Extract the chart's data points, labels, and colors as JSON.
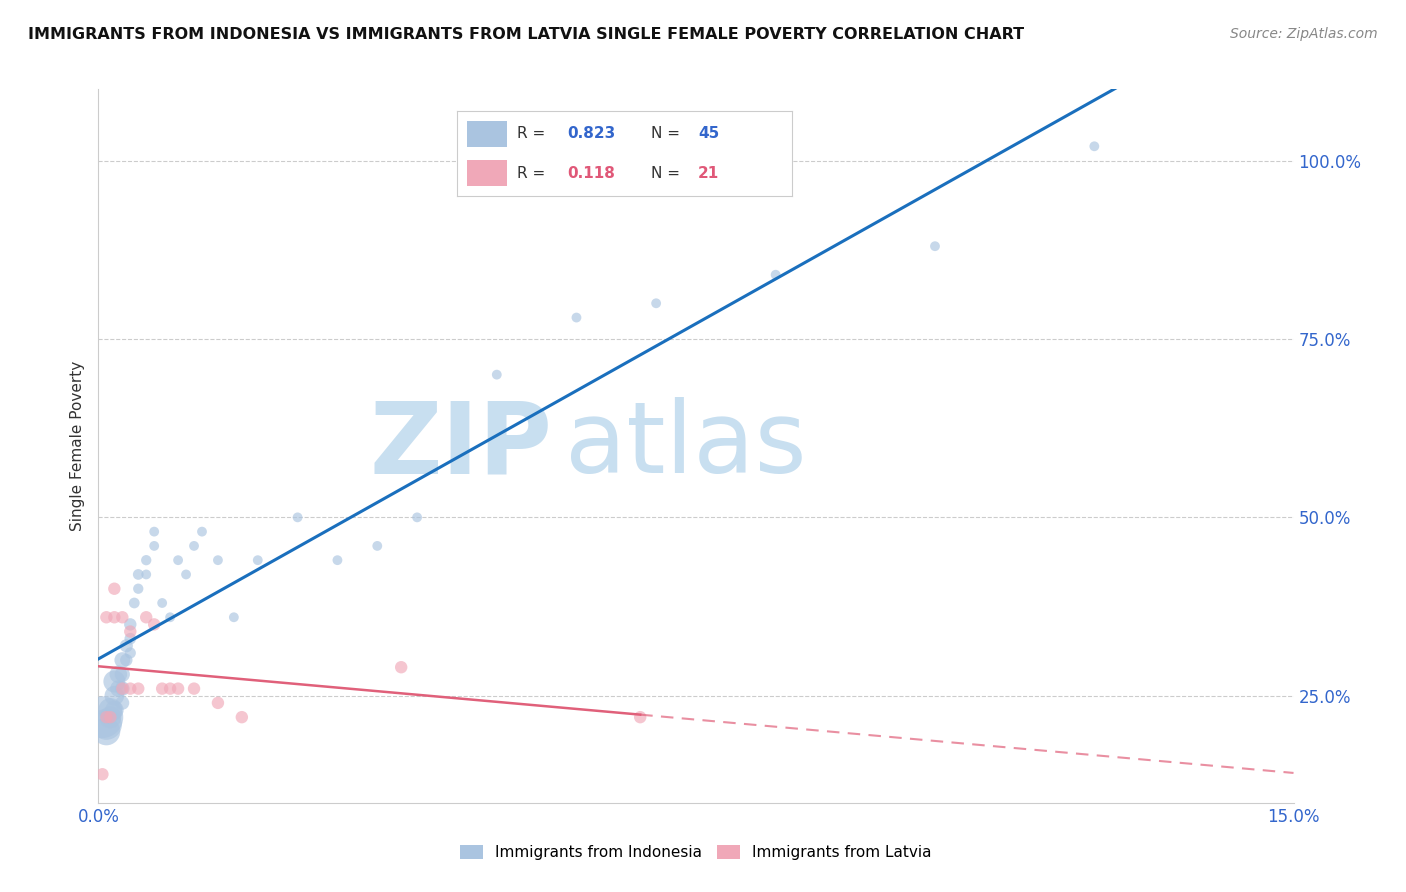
{
  "title": "IMMIGRANTS FROM INDONESIA VS IMMIGRANTS FROM LATVIA SINGLE FEMALE POVERTY CORRELATION CHART",
  "source": "Source: ZipAtlas.com",
  "ylabel": "Single Female Poverty",
  "xlim": [
    0.0,
    0.15
  ],
  "ylim": [
    0.1,
    1.1
  ],
  "right_yticks": [
    0.25,
    0.5,
    0.75,
    1.0
  ],
  "right_yticklabels": [
    "25.0%",
    "50.0%",
    "75.0%",
    "100.0%"
  ],
  "indonesia_color": "#aac4e0",
  "latvia_color": "#f0a8b8",
  "indonesia_line_color": "#1a6fbd",
  "latvia_line_color": "#e0607a",
  "watermark_zip": "ZIP",
  "watermark_atlas": "atlas",
  "watermark_color_zip": "#c8dff0",
  "watermark_color_atlas": "#c8dff0",
  "indonesia_x": [
    0.0005,
    0.001,
    0.001,
    0.0015,
    0.0015,
    0.002,
    0.002,
    0.002,
    0.0025,
    0.0025,
    0.003,
    0.003,
    0.003,
    0.003,
    0.0035,
    0.0035,
    0.004,
    0.004,
    0.004,
    0.0045,
    0.005,
    0.005,
    0.006,
    0.006,
    0.007,
    0.007,
    0.008,
    0.009,
    0.01,
    0.011,
    0.012,
    0.013,
    0.015,
    0.017,
    0.02,
    0.025,
    0.03,
    0.035,
    0.04,
    0.05,
    0.06,
    0.07,
    0.085,
    0.105,
    0.125
  ],
  "indonesia_y": [
    0.22,
    0.21,
    0.2,
    0.23,
    0.22,
    0.27,
    0.25,
    0.23,
    0.28,
    0.26,
    0.3,
    0.28,
    0.26,
    0.24,
    0.32,
    0.3,
    0.35,
    0.33,
    0.31,
    0.38,
    0.42,
    0.4,
    0.44,
    0.42,
    0.48,
    0.46,
    0.38,
    0.36,
    0.44,
    0.42,
    0.46,
    0.48,
    0.44,
    0.36,
    0.44,
    0.5,
    0.44,
    0.46,
    0.5,
    0.7,
    0.78,
    0.8,
    0.84,
    0.88,
    1.02
  ],
  "indonesia_sizes": [
    900,
    500,
    400,
    300,
    250,
    250,
    200,
    180,
    160,
    140,
    130,
    120,
    110,
    100,
    90,
    80,
    80,
    70,
    65,
    60,
    60,
    55,
    55,
    50,
    50,
    50,
    50,
    50,
    50,
    50,
    50,
    50,
    50,
    50,
    50,
    50,
    50,
    50,
    50,
    50,
    50,
    50,
    50,
    50,
    50
  ],
  "latvia_x": [
    0.0005,
    0.001,
    0.001,
    0.0015,
    0.002,
    0.002,
    0.003,
    0.003,
    0.004,
    0.004,
    0.005,
    0.006,
    0.007,
    0.008,
    0.009,
    0.01,
    0.012,
    0.015,
    0.018,
    0.038,
    0.068
  ],
  "latvia_y": [
    0.14,
    0.22,
    0.36,
    0.22,
    0.36,
    0.4,
    0.26,
    0.36,
    0.34,
    0.26,
    0.26,
    0.36,
    0.35,
    0.26,
    0.26,
    0.26,
    0.26,
    0.24,
    0.22,
    0.29,
    0.22
  ],
  "latvia_sizes": [
    80,
    80,
    80,
    80,
    80,
    80,
    80,
    80,
    80,
    80,
    80,
    80,
    80,
    80,
    80,
    80,
    80,
    80,
    80,
    80,
    80
  ]
}
